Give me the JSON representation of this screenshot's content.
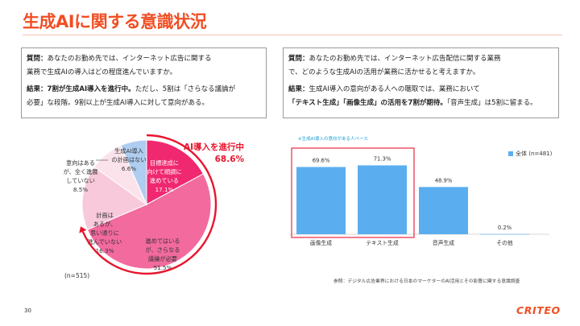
{
  "title": "生成AIに関する意識状況",
  "left_box": {
    "q_label": "質問：",
    "q_line1": "あなたのお勤め先では、インターネット広告に関する",
    "q_line2": "業務で生成AIの導入はどの程度進んでいますか。",
    "r_label": "結果：",
    "r_bold": "7割が生成AI導入を進行中。",
    "r_line1_rest": "ただし、5割は「さらなる議論が",
    "r_line2": "必要」な段階。9割以上が生成AI導入に対して意向がある。"
  },
  "right_box": {
    "q_label": "質問：",
    "q_line1": "あなたのお勤め先では、インターネット広告配信に関する業務",
    "q_line2": "で、どのような生成AIの活用が業務に活かせると考えますか。",
    "r_label": "結果：",
    "r_line1": "生成AI導入の意向がある人への聴取では、業務において",
    "r_bold": "「テキスト生成」「画像生成」の活用を7割が期待。",
    "r_line2_rest": "「音声生成」は5割に留まる。"
  },
  "pie": {
    "callout_line1": "AI導入を進行中",
    "callout_line2": "68.6%",
    "n_note": "(n=515)",
    "colors": {
      "red": "#f0286f",
      "pink": "#f26a9e",
      "lightpink": "#f8c9da",
      "palepink": "#fbe3ec",
      "blue": "#aecdf0",
      "arrow": "#e8152d"
    },
    "slices": [
      {
        "value": 17.1,
        "lines": [
          "目標達成に",
          "向けて順調に",
          "進めている",
          "17.1%"
        ]
      },
      {
        "value": 51.5,
        "lines": [
          "進めてはいる",
          "が、さらなる",
          "議論が必要",
          "51.5%"
        ]
      },
      {
        "value": 16.3,
        "lines": [
          "計画は",
          "あるが、",
          "思い通りに",
          "進んでいない",
          "16.3%"
        ]
      },
      {
        "value": 8.5,
        "lines": [
          "意向はある",
          "が、全く進展",
          "していない",
          "8.5%"
        ]
      },
      {
        "value": 6.6,
        "lines": [
          "生成AI導入",
          "の計画はない",
          "6.6%"
        ]
      }
    ]
  },
  "chart_data": {
    "type": "bar",
    "note": "※生成AI導入の意向がある人ベース",
    "categories": [
      "画像生成",
      "テキスト生成",
      "音声生成",
      "その他"
    ],
    "series": [
      {
        "name": "全体 (n=481)",
        "values": [
          69.6,
          71.3,
          48.9,
          0.2
        ]
      }
    ],
    "value_labels": [
      "69.6%",
      "71.3%",
      "48.9%",
      "0.2%"
    ],
    "ylim": [
      0,
      100
    ],
    "color": "#5aaef0",
    "highlight_color": "#e8152d"
  },
  "legend_label": "全体 (n=481)",
  "source": "参照：デジタル広告業界における日本のマーケターのAI活用とその影響に関する意識調査",
  "page_number": "30",
  "logo": "CRITEO"
}
